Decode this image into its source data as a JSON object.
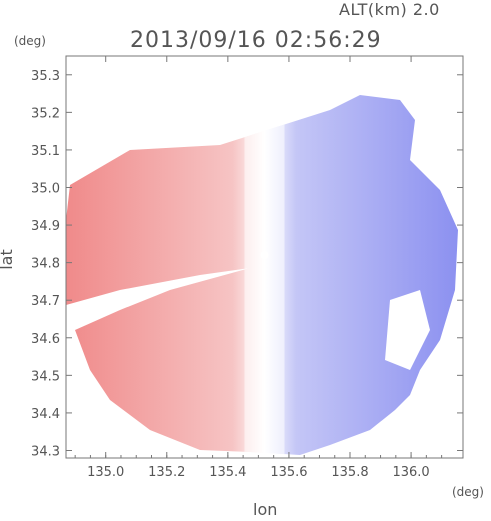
{
  "header": {
    "altitude_label": "ALT(km) 2.0",
    "timestamp": "2013/09/16 02:56:29"
  },
  "axes": {
    "y_unit": "(deg)",
    "x_unit": "(deg)"
  },
  "chart_data": {
    "type": "heatmap",
    "description_type": "radar doppler velocity field",
    "xlabel": "lon",
    "ylabel": "lat",
    "xlim": [
      134.87,
      136.17
    ],
    "ylim": [
      34.28,
      35.35
    ],
    "x_ticks": [
      135.0,
      135.2,
      135.4,
      135.6,
      135.8,
      136.0
    ],
    "x_tick_labels": [
      "135.0",
      "135.2",
      "135.4",
      "135.6",
      "135.8",
      "136.0"
    ],
    "y_ticks": [
      34.3,
      34.4,
      34.5,
      34.6,
      34.7,
      34.8,
      34.9,
      35.0,
      35.1,
      35.2,
      35.3
    ],
    "y_tick_labels": [
      "34.3",
      "34.4",
      "34.5",
      "34.6",
      "34.7",
      "34.8",
      "34.9",
      "35.0",
      "35.1",
      "35.2",
      "35.3"
    ],
    "radar_center": [
      135.52,
      34.82
    ],
    "colors": {
      "approaching": "#8a8ff0",
      "receding": "#f08a8a",
      "zero": "#ffffff",
      "frame": "#777777"
    }
  }
}
